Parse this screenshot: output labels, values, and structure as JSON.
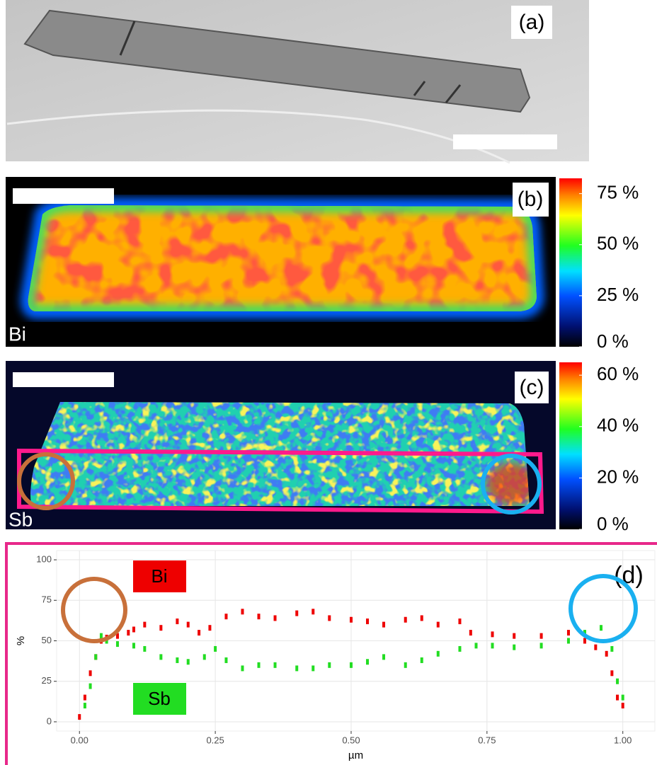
{
  "figure": {
    "panel_a": {
      "label": "(a)"
    },
    "panel_b": {
      "label": "(b)",
      "element": "Bi",
      "colorbar": {
        "lim": [
          0,
          82.5
        ],
        "ticks": [
          {
            "value": 75,
            "label": "75 %"
          },
          {
            "value": 50,
            "label": "50 %"
          },
          {
            "value": 25,
            "label": "25 %"
          },
          {
            "value": 0,
            "label": "0 %"
          }
        ]
      }
    },
    "panel_c": {
      "label": "(c)",
      "element": "Sb",
      "colorbar": {
        "lim": [
          0,
          65
        ],
        "ticks": [
          {
            "value": 60,
            "label": "60 %"
          },
          {
            "value": 40,
            "label": "40 %"
          },
          {
            "value": 20,
            "label": "20 %"
          },
          {
            "value": 0,
            "label": "0 %"
          }
        ]
      }
    }
  },
  "chart_data": {
    "type": "scatter",
    "label": "(d)",
    "xlabel": "µm",
    "ylabel": "%",
    "xlim": [
      -0.042,
      1.059
    ],
    "ylim": [
      -5.7,
      105.7
    ],
    "xticks": [
      {
        "value": 0,
        "label": "0.00"
      },
      {
        "value": 0.25,
        "label": "0.25"
      },
      {
        "value": 0.5,
        "label": "0.50"
      },
      {
        "value": 0.75,
        "label": "0.75"
      },
      {
        "value": 1,
        "label": "1.00"
      }
    ],
    "yticks": [
      0,
      25,
      50,
      75,
      100
    ],
    "grid": true,
    "series": [
      {
        "name": "Bi",
        "color": "#ee0000",
        "x": [
          0.0,
          0.01,
          0.02,
          0.03,
          0.04,
          0.05,
          0.07,
          0.09,
          0.1,
          0.12,
          0.15,
          0.18,
          0.2,
          0.22,
          0.24,
          0.27,
          0.3,
          0.33,
          0.36,
          0.4,
          0.43,
          0.46,
          0.5,
          0.53,
          0.56,
          0.6,
          0.63,
          0.66,
          0.7,
          0.72,
          0.76,
          0.8,
          0.85,
          0.9,
          0.93,
          0.95,
          0.97,
          0.98,
          0.99,
          1.0
        ],
        "values": [
          3,
          15,
          30,
          40,
          50,
          52,
          53,
          55,
          57,
          60,
          58,
          62,
          60,
          55,
          58,
          65,
          68,
          65,
          64,
          67,
          68,
          64,
          63,
          62,
          60,
          63,
          64,
          60,
          62,
          55,
          54,
          53,
          53,
          55,
          50,
          46,
          42,
          30,
          15,
          10
        ]
      },
      {
        "name": "Sb",
        "color": "#22dd22",
        "x": [
          0.01,
          0.02,
          0.03,
          0.04,
          0.05,
          0.07,
          0.1,
          0.12,
          0.15,
          0.18,
          0.2,
          0.23,
          0.25,
          0.27,
          0.3,
          0.33,
          0.36,
          0.4,
          0.43,
          0.46,
          0.5,
          0.53,
          0.56,
          0.6,
          0.63,
          0.66,
          0.7,
          0.73,
          0.76,
          0.8,
          0.85,
          0.9,
          0.93,
          0.96,
          0.98,
          0.99,
          1.0
        ],
        "values": [
          10,
          22,
          40,
          53,
          50,
          48,
          47,
          45,
          40,
          38,
          37,
          40,
          45,
          38,
          33,
          35,
          35,
          33,
          33,
          35,
          35,
          37,
          40,
          35,
          38,
          42,
          45,
          47,
          47,
          46,
          47,
          50,
          55,
          58,
          45,
          25,
          15
        ]
      }
    ]
  }
}
